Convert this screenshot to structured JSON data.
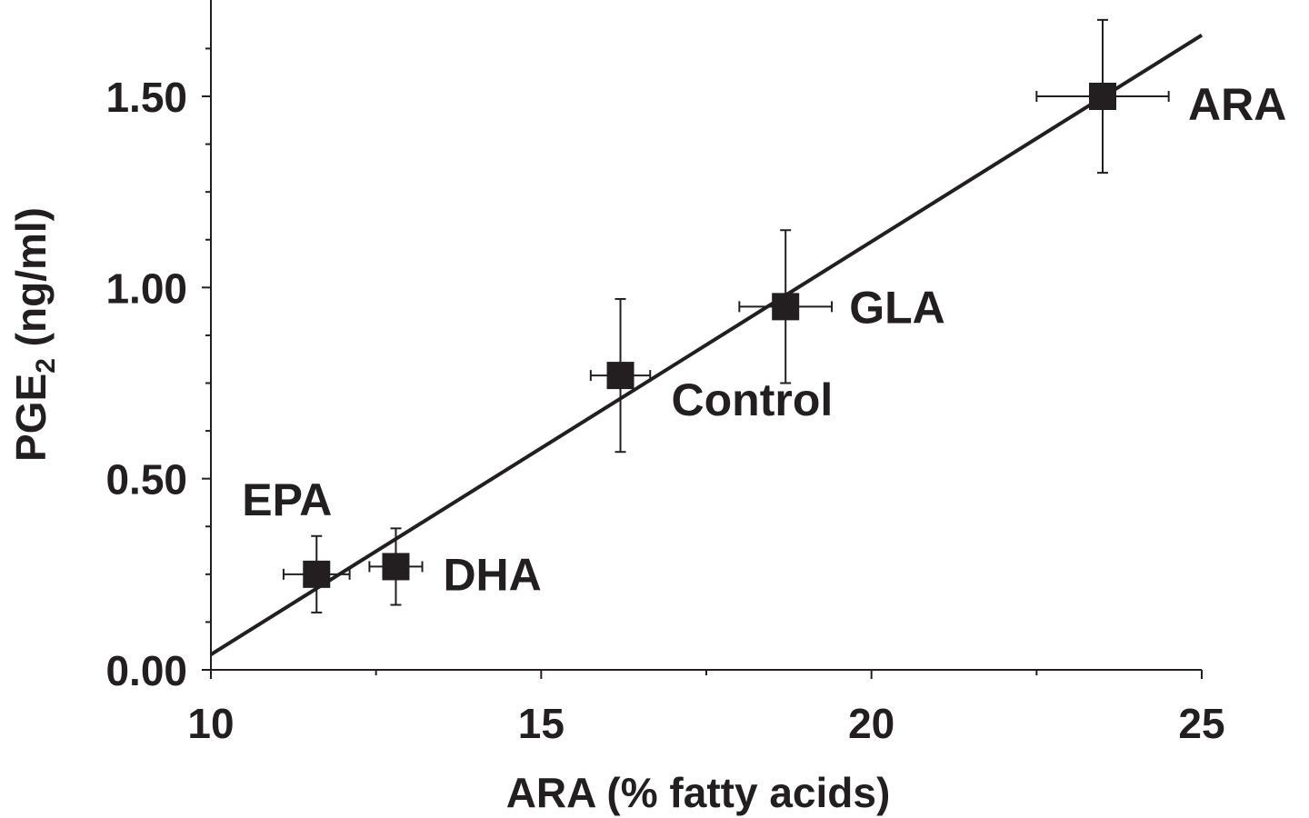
{
  "chart_data": {
    "type": "scatter",
    "xlabel": "ARA (% fatty acids)",
    "ylabel_main": "PGE",
    "ylabel_sub": "2",
    "ylabel_tail": " (ng/ml)",
    "xlim": [
      10,
      25
    ],
    "ylim": [
      0,
      1.75
    ],
    "x_ticks": [
      10,
      15,
      20,
      25
    ],
    "x_tick_labels": [
      "10",
      "15",
      "20",
      "25"
    ],
    "x_minor_step": 2.5,
    "y_ticks": [
      0,
      0.5,
      1.0,
      1.5
    ],
    "y_tick_labels": [
      "0.00",
      "0.50",
      "1.00",
      "1.50"
    ],
    "y_minor_step": 0.125,
    "points": [
      {
        "label": "EPA",
        "x": 11.6,
        "y": 0.25,
        "xerr": 0.5,
        "yerr": 0.1
      },
      {
        "label": "DHA",
        "x": 12.8,
        "y": 0.27,
        "xerr": 0.4,
        "yerr": 0.1
      },
      {
        "label": "Control",
        "x": 16.2,
        "y": 0.77,
        "xerr": 0.45,
        "yerr": 0.2
      },
      {
        "label": "GLA",
        "x": 18.7,
        "y": 0.95,
        "xerr": 0.7,
        "yerr": 0.2
      },
      {
        "label": "ARA",
        "x": 23.5,
        "y": 1.5,
        "xerr": 1.0,
        "yerr": 0.2
      }
    ],
    "fit_line": {
      "x": [
        10,
        25
      ],
      "y": [
        0.04,
        1.66
      ]
    },
    "grid": false,
    "legend": "none"
  }
}
